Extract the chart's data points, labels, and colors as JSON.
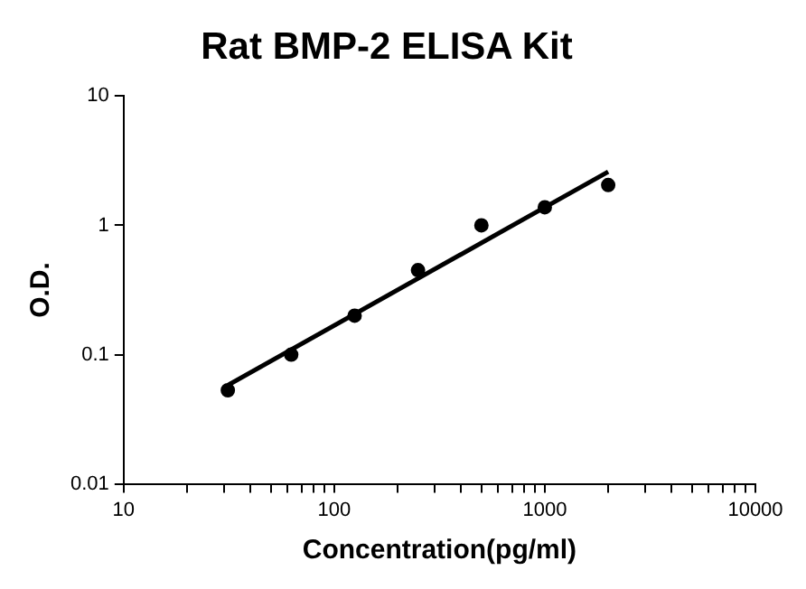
{
  "chart_data": {
    "type": "scatter",
    "title": "Rat BMP-2 ELISA Kit",
    "xlabel": "Concentration(pg/ml)",
    "ylabel": "O.D.",
    "log": "xy",
    "grid": false,
    "legend": false,
    "marker": "circle",
    "xlim": [
      10,
      10000
    ],
    "ylim": [
      0.01,
      10
    ],
    "xticks": [
      10,
      {
        "value": 20,
        "label": null
      },
      {
        "value": 30,
        "label": null
      },
      {
        "value": 40,
        "label": null
      },
      {
        "value": 50,
        "label": null
      },
      {
        "value": 60,
        "label": null
      },
      {
        "value": 70,
        "label": null
      },
      {
        "value": 80,
        "label": null
      },
      {
        "value": 90,
        "label": null
      },
      100,
      {
        "value": 200,
        "label": null
      },
      {
        "value": 300,
        "label": null
      },
      {
        "value": 400,
        "label": null
      },
      {
        "value": 500,
        "label": null
      },
      {
        "value": 600,
        "label": null
      },
      {
        "value": 700,
        "label": null
      },
      {
        "value": 800,
        "label": null
      },
      {
        "value": 900,
        "label": null
      },
      1000,
      {
        "value": 2000,
        "label": null
      },
      {
        "value": 3000,
        "label": null
      },
      {
        "value": 4000,
        "label": null
      },
      {
        "value": 5000,
        "label": null
      },
      {
        "value": 6000,
        "label": null
      },
      {
        "value": 7000,
        "label": null
      },
      {
        "value": 8000,
        "label": null
      },
      {
        "value": 9000,
        "label": null
      },
      10000
    ],
    "yticks": [
      0.01,
      0.1,
      1,
      10
    ],
    "series": [
      {
        "color": "#000000",
        "x": [
          31.25,
          62.5,
          125,
          250,
          500,
          1000,
          2000
        ],
        "values": [
          0.053,
          0.1,
          0.2,
          0.45,
          1.0,
          1.38,
          2.05
        ]
      },
      {
        "type": "line",
        "color": "#000000",
        "marker": "none",
        "x": [
          31.25,
          2000
        ],
        "values": [
          0.058,
          2.6
        ]
      }
    ]
  }
}
